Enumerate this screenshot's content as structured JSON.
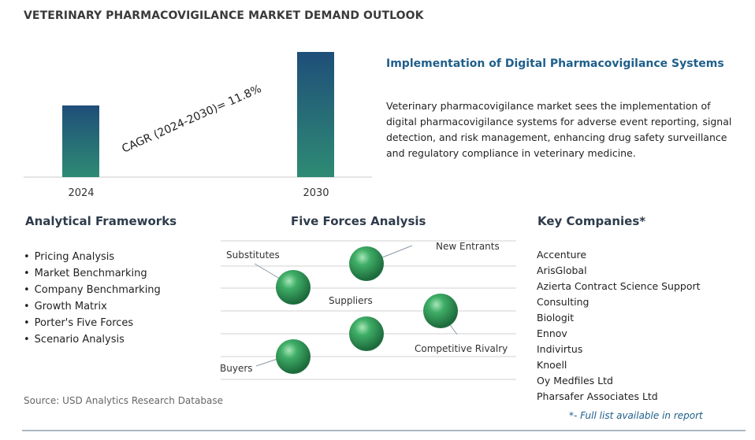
{
  "page_title": "VETERINARY PHARMACOVIGILANCE MARKET DEMAND OUTLOOK",
  "chart_data": {
    "type": "bar",
    "categories": [
      "2024",
      "2030"
    ],
    "cagr_label": "CAGR (2024-2030)=  11.8%",
    "colors": {
      "bar_top": "#1f4e79",
      "bar_bottom": "#2e8b74"
    }
  },
  "highlight": {
    "title": "Implementation of Digital Pharmacovigilance Systems",
    "body": "Veterinary pharmacovigilance market sees the implementation of digital pharmacovigilance systems for adverse event reporting, signal detection, and risk management, enhancing drug safety surveillance and regulatory compliance in veterinary medicine."
  },
  "frameworks": {
    "title": "Analytical Frameworks",
    "items": [
      "Pricing Analysis",
      "Market Benchmarking",
      "Company Benchmarking",
      "Growth Matrix",
      "Porter's Five Forces",
      "Scenario Analysis"
    ]
  },
  "five_forces": {
    "title": "Five Forces Analysis",
    "labels": {
      "substitutes": "Substitutes",
      "new_entrants": "New Entrants",
      "suppliers": "Suppliers",
      "competitive_rivalry": "Competitive Rivalry",
      "buyers": "Buyers"
    },
    "sphere_color": "#2f9a57"
  },
  "companies": {
    "title": "Key Companies*",
    "items": [
      "Accenture",
      "ArisGlobal",
      "Azierta Contract Science Support",
      "Consulting",
      "Biologit",
      "Ennov",
      "Indivirtus",
      "Knoell",
      "Oy Medfiles Ltd",
      "Pharsafer Associates Ltd"
    ],
    "footnote": "*- Full list available in report"
  },
  "source": "Source: USD Analytics Research Database"
}
